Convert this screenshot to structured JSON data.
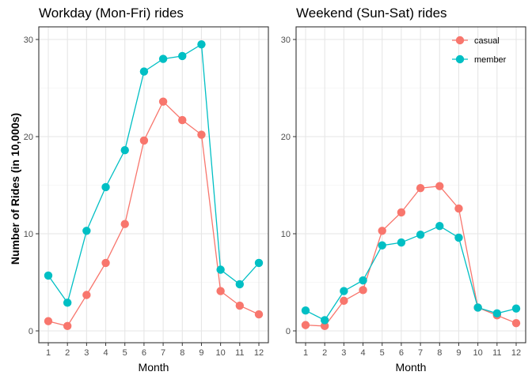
{
  "chart_data": {
    "type": "line",
    "ylabel": "Number of Rides (in 10,000s)",
    "xlabel": "Month",
    "categories": [
      "1",
      "2",
      "3",
      "4",
      "5",
      "6",
      "7",
      "8",
      "9",
      "10",
      "11",
      "12"
    ],
    "ylim": [
      0,
      30
    ],
    "yticks": [
      "0",
      "10",
      "20",
      "30"
    ],
    "grid": true,
    "legend": {
      "placement": "top-right (inside right panel)",
      "entries": [
        {
          "name": "casual",
          "color": "#F8766D"
        },
        {
          "name": "member",
          "color": "#00BFC4"
        }
      ]
    },
    "panels": [
      {
        "title": "Workday (Mon-Fri) rides",
        "series": [
          {
            "name": "casual",
            "color": "#F8766D",
            "values": [
              1.0,
              0.5,
              3.7,
              7.0,
              11.0,
              19.6,
              23.6,
              21.7,
              20.2,
              4.1,
              2.6,
              1.7
            ]
          },
          {
            "name": "member",
            "color": "#00BFC4",
            "values": [
              5.7,
              2.9,
              10.3,
              14.8,
              18.6,
              26.7,
              28.0,
              28.3,
              29.5,
              6.3,
              4.8,
              7.0
            ]
          }
        ]
      },
      {
        "title": "Weekend (Sun-Sat) rides",
        "series": [
          {
            "name": "casual",
            "color": "#F8766D",
            "values": [
              0.6,
              0.5,
              3.1,
              4.2,
              10.3,
              12.2,
              14.7,
              14.9,
              12.6,
              2.4,
              1.6,
              0.8
            ]
          },
          {
            "name": "member",
            "color": "#00BFC4",
            "values": [
              2.1,
              1.1,
              4.1,
              5.2,
              8.8,
              9.1,
              9.9,
              10.8,
              9.6,
              2.4,
              1.8,
              2.3
            ]
          }
        ]
      }
    ]
  }
}
